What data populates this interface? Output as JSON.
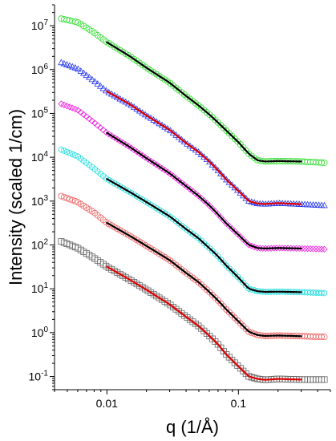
{
  "chart_data": {
    "type": "scatter",
    "title": "",
    "xlabel": "q  (1/Å)",
    "ylabel": "Intensity  (scaled 1/cm)",
    "xscale": "log",
    "yscale": "log",
    "xlim": [
      0.004,
      0.5
    ],
    "ylim": [
      0.05,
      30000000
    ],
    "x_ticks": [
      {
        "value": 0.01,
        "label": "0.01"
      },
      {
        "value": 0.1,
        "label": "0.1"
      }
    ],
    "y_ticks": [
      {
        "value": 0.1,
        "base": "10",
        "exp": "-1"
      },
      {
        "value": 1,
        "base": "10",
        "exp": "0"
      },
      {
        "value": 10,
        "base": "10",
        "exp": "1"
      },
      {
        "value": 100,
        "base": "10",
        "exp": "2"
      },
      {
        "value": 1000,
        "base": "10",
        "exp": "3"
      },
      {
        "value": 10000,
        "base": "10",
        "exp": "4"
      },
      {
        "value": 100000,
        "base": "10",
        "exp": "5"
      },
      {
        "value": 1000000,
        "base": "10",
        "exp": "6"
      },
      {
        "value": 10000000,
        "base": "10",
        "exp": "7"
      }
    ],
    "grid": false,
    "legend": "none",
    "series": [
      {
        "marker": "circle",
        "color": "#33dd33",
        "fit_color": "#000000",
        "fit_segments": [],
        "x": [
          0.0045,
          0.006,
          0.008,
          0.01,
          0.015,
          0.02,
          0.03,
          0.04,
          0.05,
          0.06,
          0.07,
          0.08,
          0.1,
          0.12,
          0.14,
          0.16,
          0.2,
          0.3,
          0.45
        ],
        "y": [
          14500000,
          12000000,
          7000000,
          4200000,
          2000000,
          1100000,
          500000,
          250000,
          150000,
          95000,
          62000,
          42000,
          22000,
          12000,
          8500,
          8000,
          8200,
          8000,
          7500
        ]
      },
      {
        "marker": "triangle",
        "color": "#2233ee",
        "fit_color": "#dd0000",
        "fit_segments": [],
        "x": [
          0.0045,
          0.006,
          0.008,
          0.01,
          0.015,
          0.02,
          0.03,
          0.04,
          0.05,
          0.06,
          0.07,
          0.08,
          0.1,
          0.12,
          0.14,
          0.16,
          0.2,
          0.3,
          0.45
        ],
        "y": [
          1450000,
          1050000,
          550000,
          320000,
          160000,
          90000,
          42000,
          21000,
          13000,
          8000,
          5000,
          3200,
          1700,
          1000,
          880,
          860,
          900,
          850,
          800
        ]
      },
      {
        "marker": "diamond",
        "color": "#ee22dd",
        "fit_color": "#000000",
        "fit_segments": [],
        "x": [
          0.0045,
          0.006,
          0.008,
          0.01,
          0.015,
          0.02,
          0.03,
          0.04,
          0.05,
          0.06,
          0.07,
          0.08,
          0.1,
          0.12,
          0.14,
          0.16,
          0.2,
          0.3,
          0.45
        ],
        "y": [
          165000,
          120000,
          62000,
          36000,
          17000,
          9500,
          4300,
          2200,
          1300,
          800,
          500,
          320,
          170,
          100,
          85,
          83,
          85,
          83,
          80
        ]
      },
      {
        "marker": "hexagon",
        "color": "#22dddd",
        "fit_color": "#000000",
        "fit_segments": [],
        "x": [
          0.0045,
          0.006,
          0.008,
          0.01,
          0.015,
          0.02,
          0.03,
          0.04,
          0.05,
          0.06,
          0.07,
          0.08,
          0.1,
          0.12,
          0.14,
          0.16,
          0.2,
          0.3,
          0.45
        ],
        "y": [
          15000,
          10500,
          5500,
          3200,
          1600,
          950,
          450,
          230,
          140,
          85,
          55,
          35,
          18,
          10,
          8.8,
          8.5,
          8.6,
          8.4,
          8
        ]
      },
      {
        "marker": "circle",
        "color": "#ee6060",
        "fit_color": "#000000",
        "fit_segments": [],
        "x": [
          0.0045,
          0.006,
          0.008,
          0.01,
          0.015,
          0.02,
          0.03,
          0.04,
          0.05,
          0.06,
          0.07,
          0.08,
          0.1,
          0.12,
          0.14,
          0.16,
          0.2,
          0.3,
          0.45
        ],
        "y": [
          1300,
          950,
          550,
          320,
          160,
          95,
          45,
          23,
          14,
          8.5,
          5.4,
          3.5,
          1.8,
          1.05,
          0.88,
          0.84,
          0.86,
          0.83,
          0.8
        ]
      },
      {
        "marker": "square",
        "color": "#666666",
        "fit_color": "#dd0000",
        "fit_segments": [],
        "x": [
          0.0045,
          0.006,
          0.008,
          0.01,
          0.015,
          0.02,
          0.03,
          0.04,
          0.05,
          0.06,
          0.07,
          0.08,
          0.1,
          0.12,
          0.14,
          0.16,
          0.2,
          0.3,
          0.45
        ],
        "y": [
          120,
          85,
          50,
          32,
          16,
          9.5,
          4.4,
          2.3,
          1.4,
          0.85,
          0.54,
          0.33,
          0.17,
          0.1,
          0.088,
          0.084,
          0.088,
          0.085,
          0.085
        ]
      }
    ]
  }
}
